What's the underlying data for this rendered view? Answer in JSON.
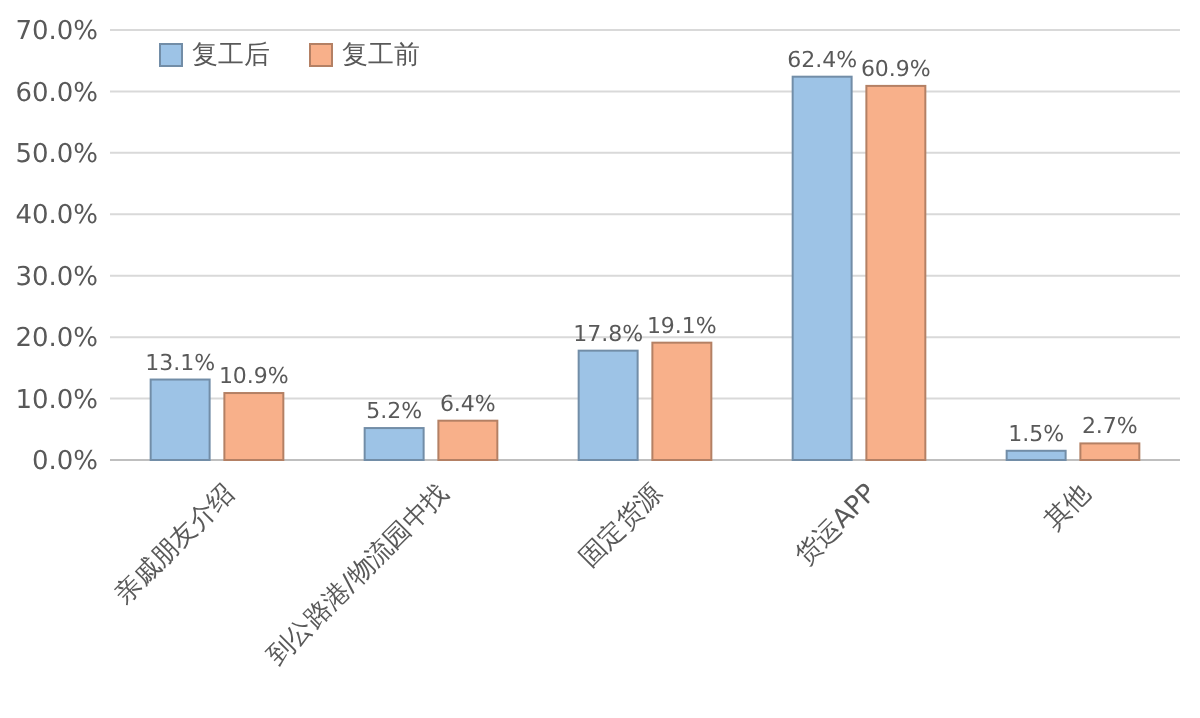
{
  "chart_data": {
    "type": "bar",
    "categories": [
      "亲戚朋友介绍",
      "到公路港/物流园中找",
      "固定货源",
      "货运APP",
      "其他"
    ],
    "series": [
      {
        "name": "复工后",
        "color": "#9dc3e6",
        "values": [
          13.1,
          5.2,
          17.8,
          62.4,
          1.5
        ],
        "value_labels": [
          "13.1%",
          "5.2%",
          "17.8%",
          "62.4%",
          "1.5%"
        ]
      },
      {
        "name": "复工前",
        "color": "#f8b08a",
        "values": [
          10.9,
          6.4,
          19.1,
          60.9,
          2.7
        ],
        "value_labels": [
          "10.9%",
          "6.4%",
          "19.1%",
          "60.9%",
          "2.7%"
        ]
      }
    ],
    "ylim": [
      0,
      70
    ],
    "yticks": [
      {
        "value": 0,
        "label": "0.0%"
      },
      {
        "value": 10,
        "label": "10.0%"
      },
      {
        "value": 20,
        "label": "20.0%"
      },
      {
        "value": 30,
        "label": "30.0%"
      },
      {
        "value": 40,
        "label": "40.0%"
      },
      {
        "value": 50,
        "label": "50.0%"
      },
      {
        "value": 60,
        "label": "60.0%"
      },
      {
        "value": 70,
        "label": "70.0%"
      }
    ],
    "grid": "y",
    "legend": "top left"
  }
}
